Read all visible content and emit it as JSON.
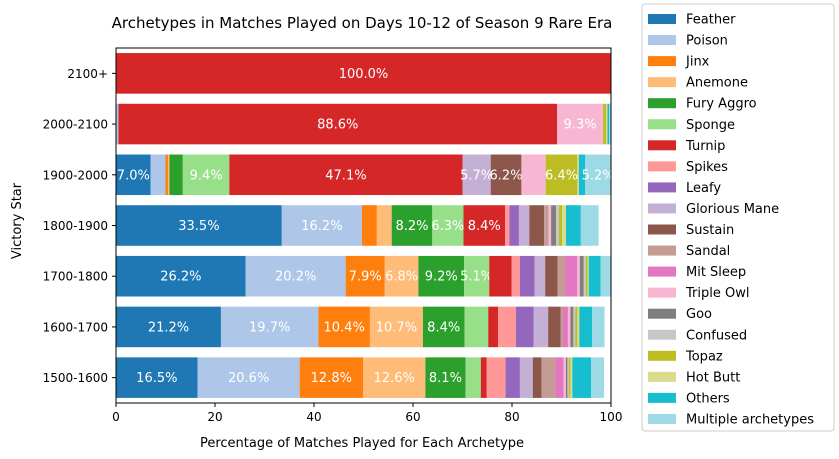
{
  "chart_data": {
    "type": "bar",
    "orientation": "horizontal",
    "stacked": true,
    "title": "Archetypes in Matches Played on Days 10-12 of Season 9 Rare Era",
    "xlabel": "Percentage of Matches Played for Each Archetype",
    "ylabel": "Victory Star",
    "xlim": [
      0,
      100
    ],
    "xticks": [
      "0",
      "20",
      "40",
      "60",
      "80",
      "100"
    ],
    "grid": false,
    "legend_position": "right-outside",
    "categories": [
      "2100+",
      "2000-2100",
      "1900-2000",
      "1800-1900",
      "1700-1800",
      "1600-1700",
      "1500-1600"
    ],
    "series": [
      {
        "name": "Feather",
        "color": "#1f77b4",
        "values": [
          0,
          0,
          7.0,
          33.5,
          26.2,
          21.2,
          16.5
        ],
        "labels": [
          "",
          "",
          "7.0%",
          "33.5%",
          "26.2%",
          "21.2%",
          "16.5%"
        ]
      },
      {
        "name": "Poison",
        "color": "#aec7e8",
        "values": [
          0,
          0.5,
          3.0,
          16.2,
          20.2,
          19.7,
          20.6
        ],
        "labels": [
          "",
          "",
          "",
          "16.2%",
          "20.2%",
          "19.7%",
          "20.6%"
        ]
      },
      {
        "name": "Jinx",
        "color": "#ff7f0e",
        "values": [
          0,
          0,
          0.5,
          3.0,
          7.9,
          10.4,
          12.8
        ],
        "labels": [
          "",
          "",
          "",
          "",
          "7.9%",
          "10.4%",
          "12.8%"
        ]
      },
      {
        "name": "Anemone",
        "color": "#ffbb78",
        "values": [
          0,
          0,
          0.3,
          3.0,
          6.8,
          10.7,
          12.6
        ],
        "labels": [
          "",
          "",
          "",
          "",
          "6.8%",
          "10.7%",
          "12.6%"
        ]
      },
      {
        "name": "Fury Aggro",
        "color": "#2ca02c",
        "values": [
          0,
          0,
          2.7,
          8.2,
          9.2,
          8.4,
          8.1
        ],
        "labels": [
          "",
          "",
          "",
          "8.2%",
          "9.2%",
          "8.4%",
          "8.1%"
        ]
      },
      {
        "name": "Sponge",
        "color": "#98df8a",
        "values": [
          0,
          0,
          9.4,
          6.3,
          5.1,
          4.8,
          3.1
        ],
        "labels": [
          "",
          "",
          "9.4%",
          "6.3%",
          "5.1%",
          "",
          ""
        ]
      },
      {
        "name": "Turnip",
        "color": "#d62728",
        "values": [
          100.0,
          88.6,
          47.1,
          8.4,
          4.5,
          2.0,
          1.2
        ],
        "labels": [
          "100.0%",
          "88.6%",
          "47.1%",
          "8.4%",
          "",
          "",
          ""
        ]
      },
      {
        "name": "Spikes",
        "color": "#ff9896",
        "values": [
          0,
          0,
          0,
          0.9,
          1.7,
          3.6,
          3.8
        ],
        "labels": [
          "",
          "",
          "",
          "",
          "",
          "",
          ""
        ]
      },
      {
        "name": "Leafy",
        "color": "#9467bd",
        "values": [
          0,
          0,
          0,
          1.9,
          3.0,
          3.6,
          2.9
        ],
        "labels": [
          "",
          "",
          "",
          "",
          "",
          "",
          ""
        ]
      },
      {
        "name": "Glorious Mane",
        "color": "#c5b0d5",
        "values": [
          0,
          0,
          5.7,
          2.1,
          2.1,
          2.9,
          2.6
        ],
        "labels": [
          "",
          "",
          "5.7%",
          "",
          "",
          "",
          ""
        ]
      },
      {
        "name": "Sustain",
        "color": "#8c564b",
        "values": [
          0,
          0,
          6.2,
          3.0,
          2.5,
          2.5,
          1.8
        ],
        "labels": [
          "",
          "",
          "6.2%",
          "",
          "",
          "",
          ""
        ]
      },
      {
        "name": "Sandal",
        "color": "#c49c94",
        "values": [
          0,
          0,
          0,
          0.9,
          1.5,
          0.5,
          2.8
        ],
        "labels": [
          "",
          "",
          "",
          "",
          "",
          "",
          ""
        ]
      },
      {
        "name": "Mit Sleep",
        "color": "#e377c2",
        "values": [
          0,
          0,
          0,
          0,
          2.5,
          1.0,
          1.6
        ],
        "labels": [
          "",
          "",
          "",
          "",
          "",
          "",
          ""
        ]
      },
      {
        "name": "Triple Owl",
        "color": "#f7b6d2",
        "values": [
          0,
          9.3,
          4.9,
          0.5,
          0.5,
          0.5,
          0.5
        ],
        "labels": [
          "",
          "9.3%",
          "",
          "",
          "",
          "",
          ""
        ]
      },
      {
        "name": "Goo",
        "color": "#7f7f7f",
        "values": [
          0,
          0,
          0,
          1.0,
          0.8,
          0.6,
          0.3
        ],
        "labels": [
          "",
          "",
          "",
          "",
          "",
          "",
          ""
        ]
      },
      {
        "name": "Confused",
        "color": "#c7c7c7",
        "values": [
          0,
          0,
          0,
          0.6,
          0.4,
          0.4,
          0.3
        ],
        "labels": [
          "",
          "",
          "",
          "",
          "",
          "",
          ""
        ]
      },
      {
        "name": "Topaz",
        "color": "#bcbd22",
        "values": [
          0,
          0.6,
          6.4,
          0.6,
          0.4,
          0.4,
          0.3
        ],
        "labels": [
          "",
          "",
          "6.4%",
          "",
          "",
          "",
          ""
        ]
      },
      {
        "name": "Hot Butt",
        "color": "#dbdb8d",
        "values": [
          0,
          0.3,
          0.3,
          0.8,
          0.2,
          0.4,
          0.4
        ],
        "labels": [
          "",
          "",
          "",
          "",
          "",
          "",
          ""
        ]
      },
      {
        "name": "Others",
        "color": "#17becf",
        "values": [
          0,
          0.3,
          1.3,
          3.0,
          2.4,
          2.6,
          3.8
        ],
        "labels": [
          "",
          "",
          "",
          "",
          "",
          "",
          ""
        ]
      },
      {
        "name": "Multiple archetypes",
        "color": "#9edae5",
        "values": [
          0,
          0.4,
          5.2,
          3.6,
          2.6,
          2.5,
          2.6
        ],
        "labels": [
          "",
          "",
          "5.2%",
          "",
          "",
          "",
          ""
        ]
      }
    ]
  }
}
